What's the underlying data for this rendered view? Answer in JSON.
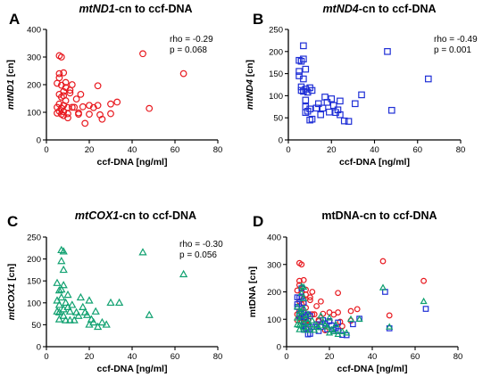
{
  "chart_data": [
    {
      "id": "A",
      "letter": "A",
      "type": "scatter",
      "title": {
        "italic": "mtND1",
        "rest": "-cn to ccf-DNA"
      },
      "xlabel": "ccf-DNA [ng/ml]",
      "ylabel": {
        "italic": "mtND1",
        "rest": " [cn]"
      },
      "xlim": [
        0,
        80
      ],
      "ylim": [
        0,
        400
      ],
      "xticks": [
        0,
        20,
        40,
        60,
        80
      ],
      "yticks": [
        0,
        100,
        200,
        300,
        400
      ],
      "stats": [
        "rho = -0.29",
        "p =  0.068"
      ],
      "grid": false,
      "series": [
        {
          "marker": "circle",
          "color": "#e8191f",
          "points": [
            [
              5,
              205
            ],
            [
              5,
              118
            ],
            [
              5,
              97
            ],
            [
              6,
              305
            ],
            [
              6,
              240
            ],
            [
              6,
              225
            ],
            [
              6,
              165
            ],
            [
              6,
              130
            ],
            [
              6,
              104
            ],
            [
              7,
              300
            ],
            [
              7,
              198
            ],
            [
              7,
              155
            ],
            [
              7,
              115
            ],
            [
              7,
              93
            ],
            [
              8,
              243
            ],
            [
              8,
              175
            ],
            [
              8,
              160
            ],
            [
              8,
              125
            ],
            [
              8,
              102
            ],
            [
              8,
              88
            ],
            [
              9,
              208
            ],
            [
              9,
              190
            ],
            [
              9,
              142
            ],
            [
              10,
              95
            ],
            [
              10,
              80
            ],
            [
              10,
              117
            ],
            [
              11,
              180
            ],
            [
              11,
              170
            ],
            [
              12,
              200
            ],
            [
              12,
              118
            ],
            [
              13,
              118
            ],
            [
              14,
              148
            ],
            [
              15,
              98
            ],
            [
              15,
              93
            ],
            [
              16,
              165
            ],
            [
              17,
              120
            ],
            [
              18,
              60
            ],
            [
              20,
              93
            ],
            [
              20,
              125
            ],
            [
              22,
              117
            ],
            [
              24,
              196
            ],
            [
              24,
              125
            ],
            [
              25,
              91
            ],
            [
              26,
              75
            ],
            [
              30,
              95
            ],
            [
              30,
              130
            ],
            [
              33,
              137
            ],
            [
              45,
              312
            ],
            [
              48,
              114
            ],
            [
              64,
              240
            ]
          ]
        }
      ]
    },
    {
      "id": "B",
      "letter": "B",
      "type": "scatter",
      "title": {
        "italic": "mtND4",
        "rest": "-cn to ccf-DNA"
      },
      "xlabel": "ccf-DNA [ng/ml]",
      "ylabel": {
        "italic": "mtND4",
        "rest": " [cn]"
      },
      "xlim": [
        0,
        80
      ],
      "ylim": [
        0,
        250
      ],
      "xticks": [
        0,
        20,
        40,
        60,
        80
      ],
      "yticks": [
        0,
        50,
        100,
        150,
        200,
        250
      ],
      "stats": [
        "rho = -0.49",
        "p = 0.001"
      ],
      "grid": false,
      "series": [
        {
          "marker": "square",
          "color": "#1f2fd6",
          "points": [
            [
              5,
              180
            ],
            [
              5,
              155
            ],
            [
              5,
              145
            ],
            [
              6,
              178
            ],
            [
              6,
              120
            ],
            [
              6,
              112
            ],
            [
              7,
              213
            ],
            [
              7,
              183
            ],
            [
              7,
              138
            ],
            [
              7,
              110
            ],
            [
              8,
              160
            ],
            [
              8,
              115
            ],
            [
              8,
              90
            ],
            [
              8,
              75
            ],
            [
              8,
              62
            ],
            [
              9,
              108
            ],
            [
              9,
              65
            ],
            [
              10,
              118
            ],
            [
              10,
              70
            ],
            [
              10,
              45
            ],
            [
              11,
              47
            ],
            [
              11,
              112
            ],
            [
              13,
              72
            ],
            [
              14,
              82
            ],
            [
              15,
              57
            ],
            [
              16,
              72
            ],
            [
              17,
              97
            ],
            [
              18,
              85
            ],
            [
              19,
              63
            ],
            [
              20,
              93
            ],
            [
              21,
              78
            ],
            [
              22,
              62
            ],
            [
              23,
              68
            ],
            [
              24,
              57
            ],
            [
              24,
              88
            ],
            [
              26,
              43
            ],
            [
              28,
              42
            ],
            [
              31,
              82
            ],
            [
              34,
              102
            ],
            [
              46,
              200
            ],
            [
              48,
              67
            ],
            [
              65,
              138
            ]
          ]
        }
      ]
    },
    {
      "id": "C",
      "letter": "C",
      "type": "scatter",
      "title": {
        "italic": "mtCOX1",
        "rest": "-cn to ccf-DNA"
      },
      "xlabel": "ccf-DNA [ng/ml]",
      "ylabel": {
        "italic": "mtCOX1",
        "rest": " [cn]"
      },
      "xlim": [
        0,
        80
      ],
      "ylim": [
        0,
        250
      ],
      "xticks": [
        0,
        20,
        40,
        60,
        80
      ],
      "yticks": [
        0,
        50,
        100,
        150,
        200,
        250
      ],
      "stats": [
        "rho = -0.30",
        "p = 0.056"
      ],
      "grid": false,
      "series": [
        {
          "marker": "triangle",
          "color": "#10a170",
          "points": [
            [
              5,
              145
            ],
            [
              5,
              105
            ],
            [
              5,
              80
            ],
            [
              6,
              128
            ],
            [
              6,
              95
            ],
            [
              6,
              78
            ],
            [
              6,
              62
            ],
            [
              7,
              220
            ],
            [
              7,
              195
            ],
            [
              7,
              130
            ],
            [
              7,
              112
            ],
            [
              8,
              217
            ],
            [
              8,
              175
            ],
            [
              8,
              140
            ],
            [
              8,
              85
            ],
            [
              8,
              70
            ],
            [
              9,
              100
            ],
            [
              9,
              60
            ],
            [
              10,
              118
            ],
            [
              10,
              90
            ],
            [
              11,
              80
            ],
            [
              11,
              60
            ],
            [
              12,
              95
            ],
            [
              13,
              60
            ],
            [
              14,
              78
            ],
            [
              15,
              70
            ],
            [
              16,
              112
            ],
            [
              17,
              90
            ],
            [
              18,
              78
            ],
            [
              19,
              72
            ],
            [
              20,
              105
            ],
            [
              20,
              50
            ],
            [
              21,
              62
            ],
            [
              22,
              55
            ],
            [
              23,
              80
            ],
            [
              24,
              45
            ],
            [
              26,
              55
            ],
            [
              28,
              50
            ],
            [
              30,
              100
            ],
            [
              34,
              100
            ],
            [
              45,
              215
            ],
            [
              48,
              72
            ],
            [
              64,
              165
            ]
          ]
        }
      ]
    },
    {
      "id": "D",
      "letter": "D",
      "type": "scatter",
      "title": {
        "italic": "",
        "rest": "mtDNA-cn to ccf-DNA"
      },
      "xlabel": "ccf-DNA [ng/ml]",
      "ylabel": {
        "italic": "",
        "rest": "mtDNA [cn]"
      },
      "xlim": [
        0,
        80
      ],
      "ylim": [
        0,
        400
      ],
      "xticks": [
        0,
        20,
        40,
        60,
        80
      ],
      "yticks": [
        0,
        100,
        200,
        300,
        400
      ],
      "stats": [],
      "grid": false,
      "overlay_of": [
        "A",
        "B",
        "C"
      ],
      "marker_size_scale": 0.85
    }
  ]
}
